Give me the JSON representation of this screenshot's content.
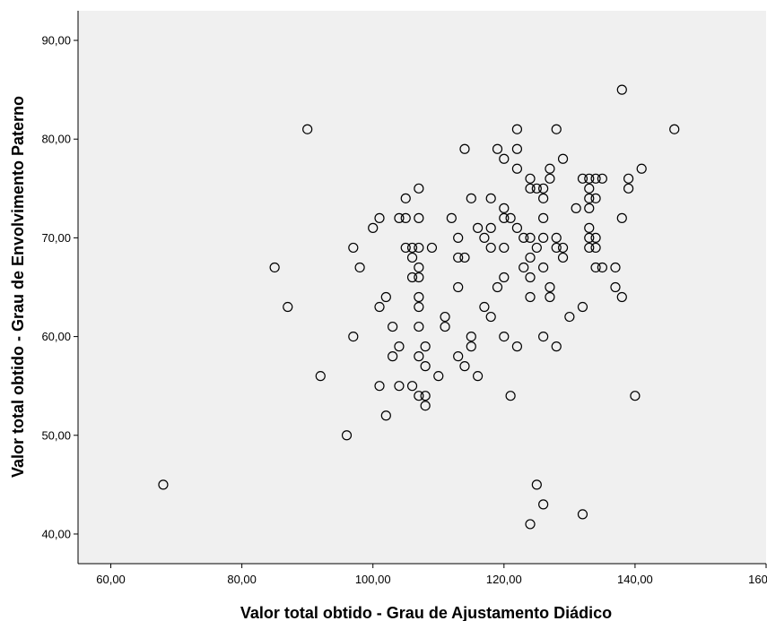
{
  "chart_data": {
    "type": "scatter",
    "title": "",
    "xlabel": "Valor total obtido - Grau de Ajustamento Diádico",
    "ylabel": "Valor total obtido - Grau de Envolvimento Paterno",
    "xlim": [
      55,
      160
    ],
    "ylim": [
      37,
      93
    ],
    "x_ticks": [
      60,
      80,
      100,
      120,
      140,
      160
    ],
    "x_tick_labels": [
      "60,00",
      "80,00",
      "100,00",
      "120,00",
      "140,00",
      "160,00"
    ],
    "y_ticks": [
      40,
      50,
      60,
      70,
      80,
      90
    ],
    "y_tick_labels": [
      "40,00",
      "50,00",
      "60,00",
      "70,00",
      "80,00",
      "90,00"
    ],
    "grid": false,
    "colors": {
      "plot_background": "#f0f0f0",
      "marker_stroke": "#000000",
      "axis": "#000000"
    },
    "marker": "open-circle",
    "points": [
      [
        68,
        45
      ],
      [
        85,
        67
      ],
      [
        87,
        63
      ],
      [
        90,
        81
      ],
      [
        92,
        56
      ],
      [
        96,
        50
      ],
      [
        97,
        69
      ],
      [
        97,
        60
      ],
      [
        98,
        67
      ],
      [
        100,
        71
      ],
      [
        101,
        72
      ],
      [
        101,
        63
      ],
      [
        101,
        55
      ],
      [
        102,
        64
      ],
      [
        102,
        52
      ],
      [
        103,
        61
      ],
      [
        103,
        58
      ],
      [
        104,
        72
      ],
      [
        104,
        59
      ],
      [
        104,
        55
      ],
      [
        105,
        74
      ],
      [
        105,
        72
      ],
      [
        105,
        69
      ],
      [
        106,
        69
      ],
      [
        106,
        68
      ],
      [
        106,
        66
      ],
      [
        106,
        55
      ],
      [
        107,
        75
      ],
      [
        107,
        72
      ],
      [
        107,
        69
      ],
      [
        107,
        67
      ],
      [
        107,
        66
      ],
      [
        107,
        64
      ],
      [
        107,
        63
      ],
      [
        107,
        61
      ],
      [
        107,
        58
      ],
      [
        107,
        54
      ],
      [
        108,
        59
      ],
      [
        108,
        57
      ],
      [
        108,
        54
      ],
      [
        108,
        53
      ],
      [
        109,
        69
      ],
      [
        110,
        56
      ],
      [
        111,
        62
      ],
      [
        111,
        61
      ],
      [
        112,
        72
      ],
      [
        113,
        70
      ],
      [
        113,
        68
      ],
      [
        113,
        65
      ],
      [
        113,
        58
      ],
      [
        114,
        79
      ],
      [
        114,
        68
      ],
      [
        114,
        57
      ],
      [
        115,
        74
      ],
      [
        115,
        60
      ],
      [
        115,
        59
      ],
      [
        116,
        71
      ],
      [
        116,
        56
      ],
      [
        117,
        70
      ],
      [
        117,
        63
      ],
      [
        118,
        74
      ],
      [
        118,
        71
      ],
      [
        118,
        69
      ],
      [
        118,
        62
      ],
      [
        119,
        79
      ],
      [
        119,
        65
      ],
      [
        120,
        78
      ],
      [
        120,
        73
      ],
      [
        120,
        72
      ],
      [
        120,
        69
      ],
      [
        120,
        66
      ],
      [
        120,
        60
      ],
      [
        121,
        72
      ],
      [
        121,
        54
      ],
      [
        122,
        81
      ],
      [
        122,
        79
      ],
      [
        122,
        77
      ],
      [
        122,
        71
      ],
      [
        122,
        59
      ],
      [
        123,
        70
      ],
      [
        123,
        67
      ],
      [
        124,
        76
      ],
      [
        124,
        75
      ],
      [
        124,
        70
      ],
      [
        124,
        68
      ],
      [
        124,
        66
      ],
      [
        124,
        64
      ],
      [
        124,
        41
      ],
      [
        125,
        75
      ],
      [
        125,
        69
      ],
      [
        125,
        45
      ],
      [
        126,
        75
      ],
      [
        126,
        74
      ],
      [
        126,
        72
      ],
      [
        126,
        70
      ],
      [
        126,
        67
      ],
      [
        126,
        60
      ],
      [
        126,
        43
      ],
      [
        127,
        77
      ],
      [
        127,
        76
      ],
      [
        127,
        65
      ],
      [
        127,
        64
      ],
      [
        128,
        81
      ],
      [
        128,
        70
      ],
      [
        128,
        69
      ],
      [
        128,
        59
      ],
      [
        129,
        78
      ],
      [
        129,
        69
      ],
      [
        129,
        68
      ],
      [
        130,
        62
      ],
      [
        131,
        73
      ],
      [
        132,
        76
      ],
      [
        132,
        63
      ],
      [
        132,
        42
      ],
      [
        133,
        76
      ],
      [
        133,
        75
      ],
      [
        133,
        74
      ],
      [
        133,
        73
      ],
      [
        133,
        71
      ],
      [
        133,
        70
      ],
      [
        133,
        69
      ],
      [
        134,
        76
      ],
      [
        134,
        74
      ],
      [
        134,
        70
      ],
      [
        134,
        69
      ],
      [
        134,
        67
      ],
      [
        135,
        76
      ],
      [
        135,
        67
      ],
      [
        137,
        67
      ],
      [
        137,
        65
      ],
      [
        138,
        85
      ],
      [
        138,
        72
      ],
      [
        138,
        64
      ],
      [
        139,
        76
      ],
      [
        139,
        75
      ],
      [
        140,
        54
      ],
      [
        141,
        77
      ],
      [
        146,
        81
      ]
    ]
  }
}
